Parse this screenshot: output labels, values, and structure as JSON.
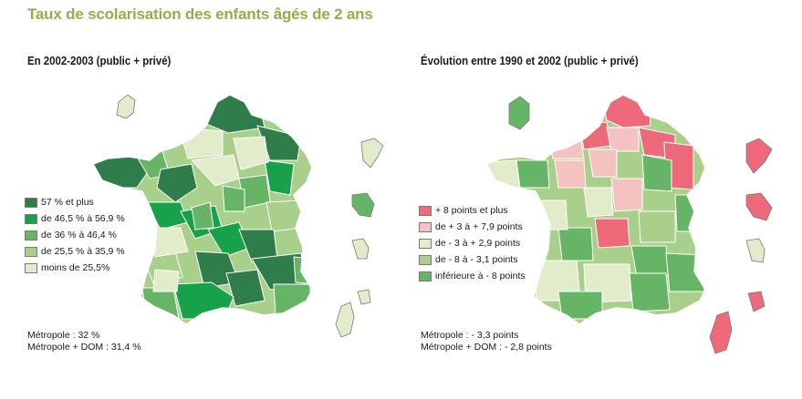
{
  "title": "Taux de scolarisation des enfants âgés de 2 ans",
  "left_map": {
    "subtitle": "En 2002-2003 (public + privé)",
    "legend": [
      {
        "label": "57 % et plus",
        "color": "#2e7d4a"
      },
      {
        "label": "de 46,5 % à 56,9 %",
        "color": "#17a24a"
      },
      {
        "label": "de 36 % à 46,4 %",
        "color": "#66b566"
      },
      {
        "label": "de 25,5 % à 35,9 %",
        "color": "#a8d08a"
      },
      {
        "label": "moins de 25,5%",
        "color": "#e2eccb"
      }
    ],
    "notes": [
      "Métropole : 32 %",
      "Métropole + DOM : 31,4 %"
    ]
  },
  "right_map": {
    "subtitle": "Évolution entre 1990 et 2002 (public + privé)",
    "legend": [
      {
        "label": "+ 8 points et plus",
        "color": "#ee6a7a"
      },
      {
        "label": "de + 3 à + 7,9 points",
        "color": "#f5c2c2"
      },
      {
        "label": "de - 3 à + 2,9 points",
        "color": "#e2eccb"
      },
      {
        "label": "de - 8 à - 3,1 points",
        "color": "#a8d08a"
      },
      {
        "label": "inférieure à - 8 points",
        "color": "#66b566"
      }
    ],
    "notes": [
      "Métropole : - 3,3 points",
      "Métropole + DOM : - 2,8 points"
    ]
  }
}
